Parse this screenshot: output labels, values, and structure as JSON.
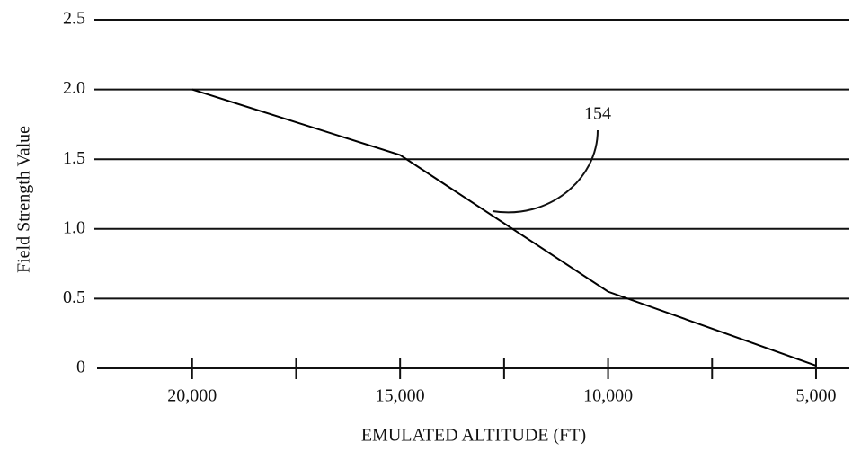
{
  "chart_data": {
    "type": "line",
    "x_label": "EMULATED ALTITUDE (FT)",
    "y_label": "Field Strength Value",
    "annotation": "154",
    "x": [
      20000,
      15000,
      10000,
      5000
    ],
    "values": [
      2.0,
      1.53,
      0.55,
      0.02
    ],
    "color": "#000000",
    "xlim": [
      22350,
      4200
    ],
    "xticks": [
      {
        "value": 20000,
        "label": "20,000"
      },
      {
        "value": 15000,
        "label": "15,000"
      },
      {
        "value": 10000,
        "label": "10,000"
      },
      {
        "value": 5000,
        "label": "5,000"
      }
    ],
    "xminorticks": [
      17500,
      12500,
      7500
    ],
    "ylim": [
      0,
      2.5
    ],
    "yticks": [
      0,
      0.5,
      {
        "value": 1,
        "label": "1.0"
      },
      1.5,
      {
        "value": 2,
        "label": "2.0"
      },
      2.5
    ],
    "grid": true
  }
}
